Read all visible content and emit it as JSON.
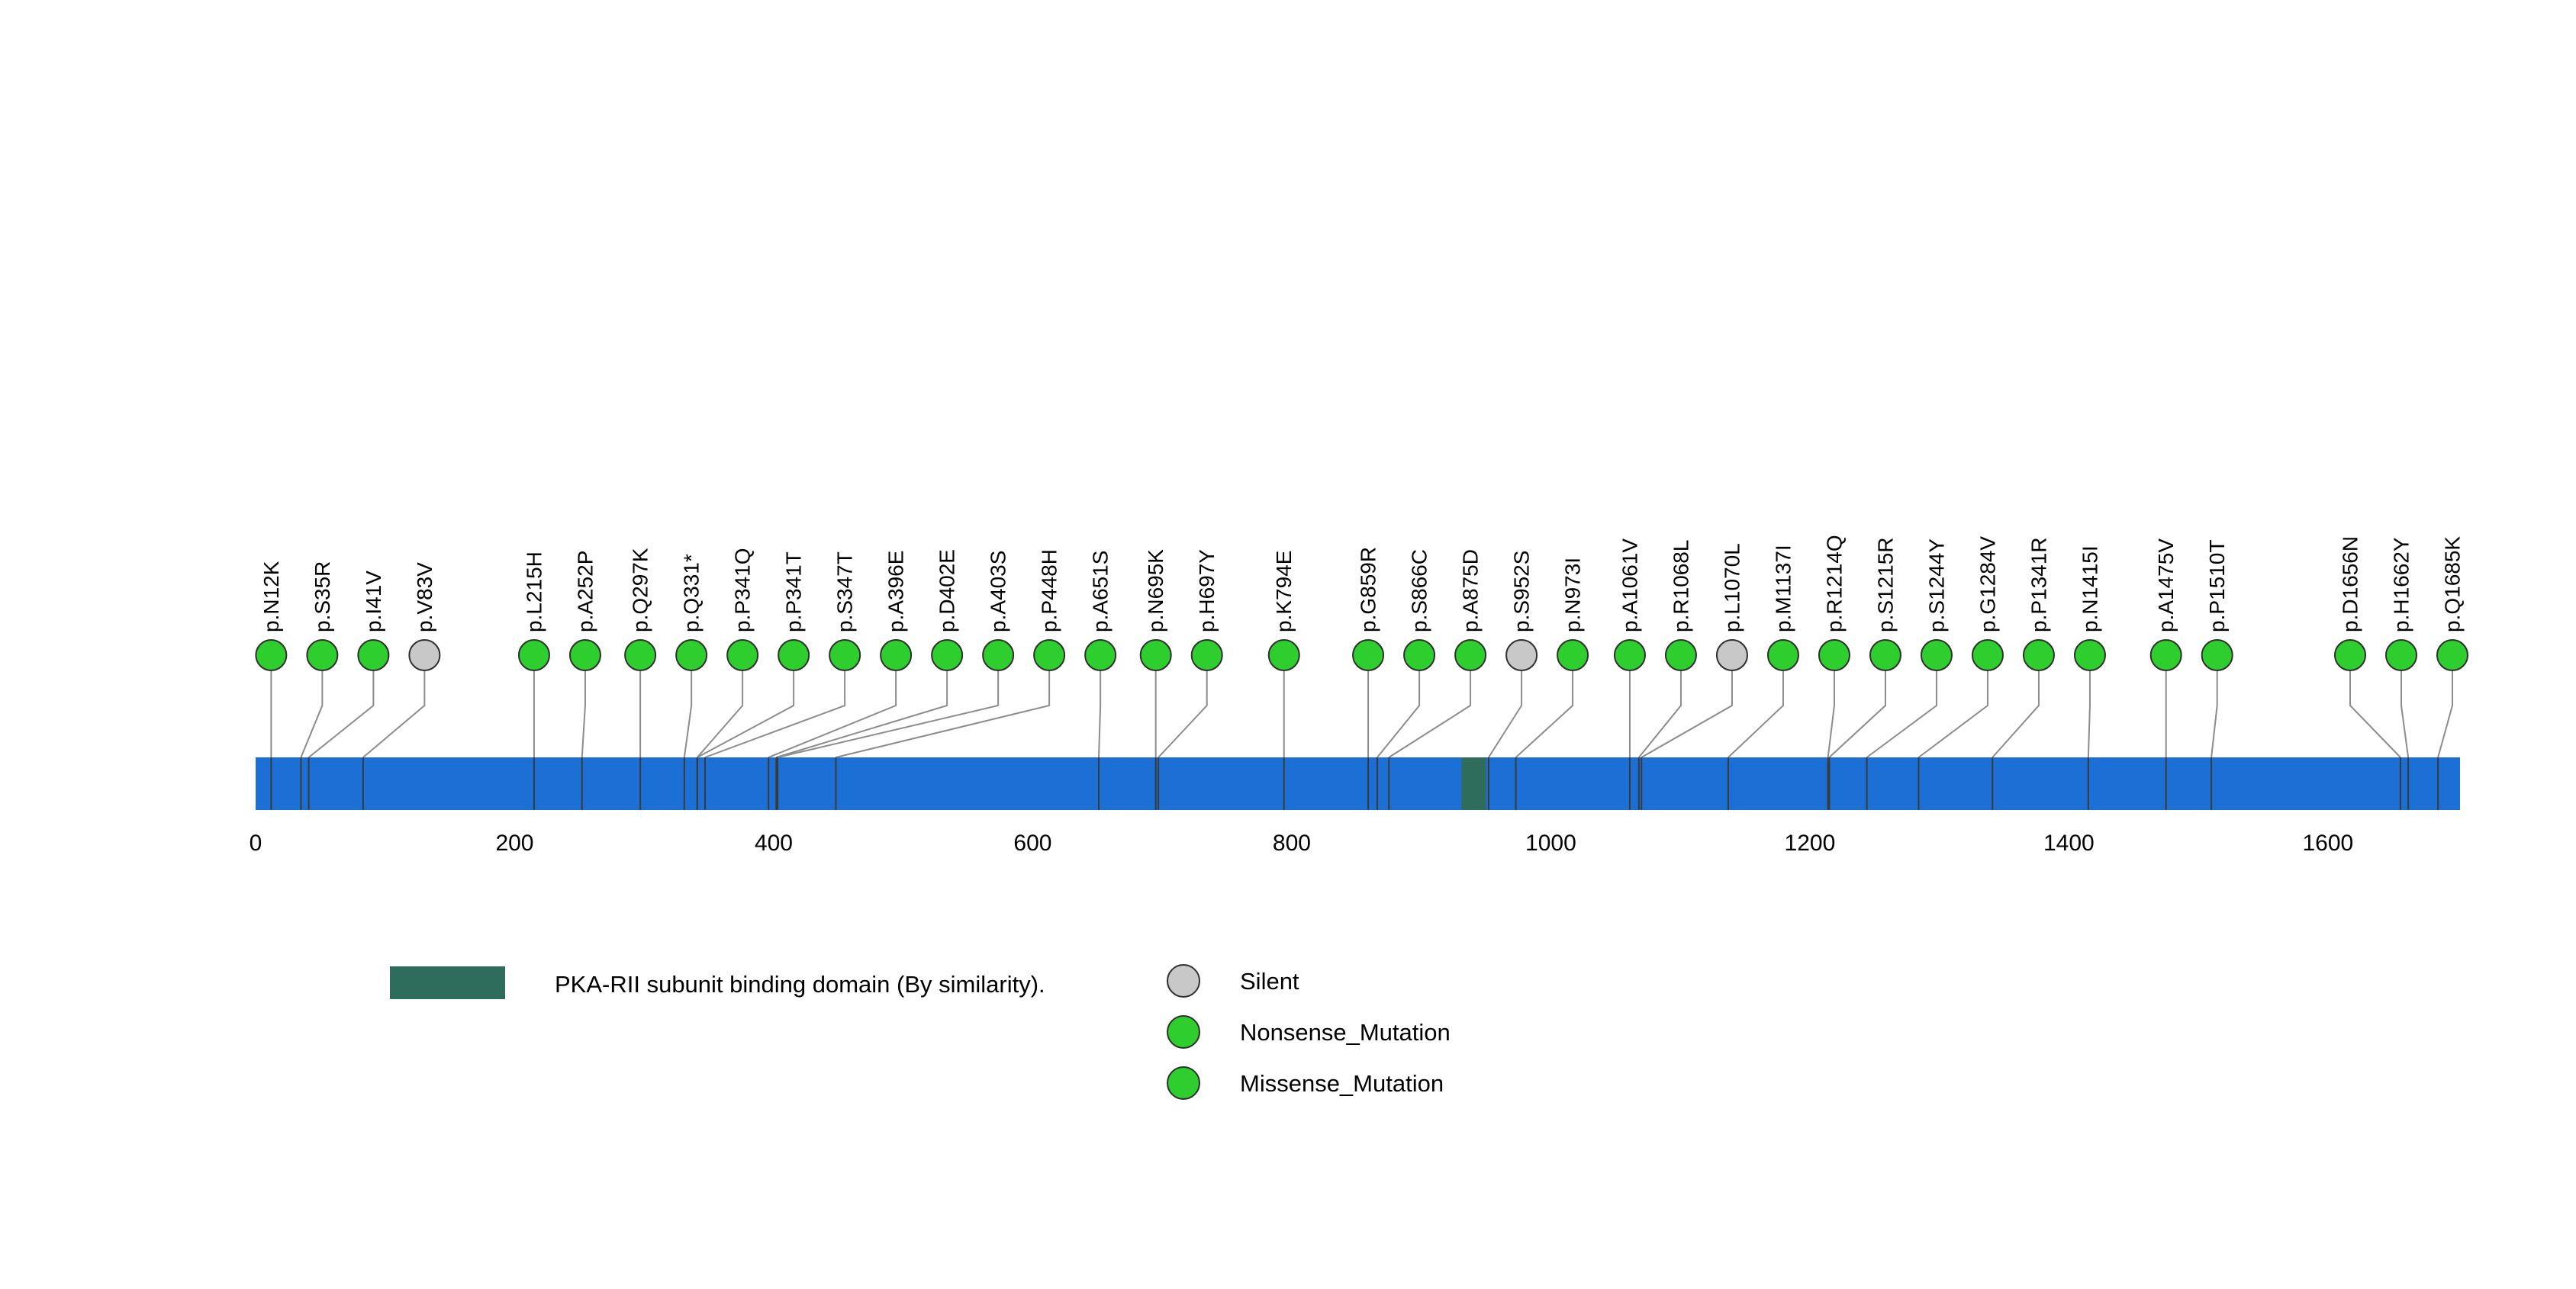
{
  "chart_data": {
    "type": "scatter",
    "subtype": "lollipop_mutation_plot",
    "title": "",
    "xlabel": "",
    "ylabel": "",
    "xlim": [
      0,
      1702
    ],
    "x_ticks": [
      0,
      200,
      400,
      600,
      800,
      1000,
      1200,
      1400,
      1600
    ],
    "protein_length": 1702,
    "grid": false,
    "legend_position": "bottom",
    "mutations": [
      {
        "label": "p.N12K",
        "position": 12,
        "type": "missense"
      },
      {
        "label": "p.S35R",
        "position": 35,
        "type": "missense"
      },
      {
        "label": "p.I41V",
        "position": 41,
        "type": "missense"
      },
      {
        "label": "p.V83V",
        "position": 83,
        "type": "silent"
      },
      {
        "label": "p.L215H",
        "position": 215,
        "type": "missense"
      },
      {
        "label": "p.A252P",
        "position": 252,
        "type": "missense"
      },
      {
        "label": "p.Q297K",
        "position": 297,
        "type": "missense"
      },
      {
        "label": "p.Q331*",
        "position": 331,
        "type": "nonsense"
      },
      {
        "label": "p.P341Q",
        "position": 341,
        "type": "missense"
      },
      {
        "label": "p.P341T",
        "position": 341,
        "type": "missense"
      },
      {
        "label": "p.S347T",
        "position": 347,
        "type": "missense"
      },
      {
        "label": "p.A396E",
        "position": 396,
        "type": "missense"
      },
      {
        "label": "p.D402E",
        "position": 402,
        "type": "missense"
      },
      {
        "label": "p.A403S",
        "position": 403,
        "type": "missense"
      },
      {
        "label": "p.P448H",
        "position": 448,
        "type": "missense"
      },
      {
        "label": "p.A651S",
        "position": 651,
        "type": "missense"
      },
      {
        "label": "p.N695K",
        "position": 695,
        "type": "missense"
      },
      {
        "label": "p.H697Y",
        "position": 697,
        "type": "missense"
      },
      {
        "label": "p.K794E",
        "position": 794,
        "type": "missense"
      },
      {
        "label": "p.G859R",
        "position": 859,
        "type": "missense"
      },
      {
        "label": "p.S866C",
        "position": 866,
        "type": "missense"
      },
      {
        "label": "p.A875D",
        "position": 875,
        "type": "missense"
      },
      {
        "label": "p.S952S",
        "position": 952,
        "type": "silent"
      },
      {
        "label": "p.N973I",
        "position": 973,
        "type": "missense"
      },
      {
        "label": "p.A1061V",
        "position": 1061,
        "type": "missense"
      },
      {
        "label": "p.R1068L",
        "position": 1068,
        "type": "missense"
      },
      {
        "label": "p.L1070L",
        "position": 1070,
        "type": "silent"
      },
      {
        "label": "p.M1137I",
        "position": 1137,
        "type": "missense"
      },
      {
        "label": "p.R1214Q",
        "position": 1214,
        "type": "missense"
      },
      {
        "label": "p.S1215R",
        "position": 1215,
        "type": "missense"
      },
      {
        "label": "p.S1244Y",
        "position": 1244,
        "type": "missense"
      },
      {
        "label": "p.G1284V",
        "position": 1284,
        "type": "missense"
      },
      {
        "label": "p.P1341R",
        "position": 1341,
        "type": "missense"
      },
      {
        "label": "p.N1415I",
        "position": 1415,
        "type": "missense"
      },
      {
        "label": "p.A1475V",
        "position": 1475,
        "type": "missense"
      },
      {
        "label": "p.P1510T",
        "position": 1510,
        "type": "missense"
      },
      {
        "label": "p.D1656N",
        "position": 1656,
        "type": "missense"
      },
      {
        "label": "p.H1662Y",
        "position": 1662,
        "type": "missense"
      },
      {
        "label": "p.Q1685K",
        "position": 1685,
        "type": "missense"
      }
    ],
    "domains": [
      {
        "name": "PKA-RII subunit binding domain (By similarity).",
        "start": 931,
        "end": 950
      }
    ],
    "legend": [
      {
        "label": "Silent",
        "type": "silent"
      },
      {
        "label": "Nonsense_Mutation",
        "type": "nonsense"
      },
      {
        "label": "Missense_Mutation",
        "type": "missense"
      }
    ],
    "colors": {
      "missense": "#2FCE2F",
      "nonsense": "#2FCE2F",
      "silent": "#C8C8C8",
      "protein_bar": "#1C6FD4",
      "domain": "#2E6D5B",
      "connector": "#8C8C8C",
      "position_line": "#3A3A3A",
      "circle_outline": "#2F2F2F"
    }
  }
}
